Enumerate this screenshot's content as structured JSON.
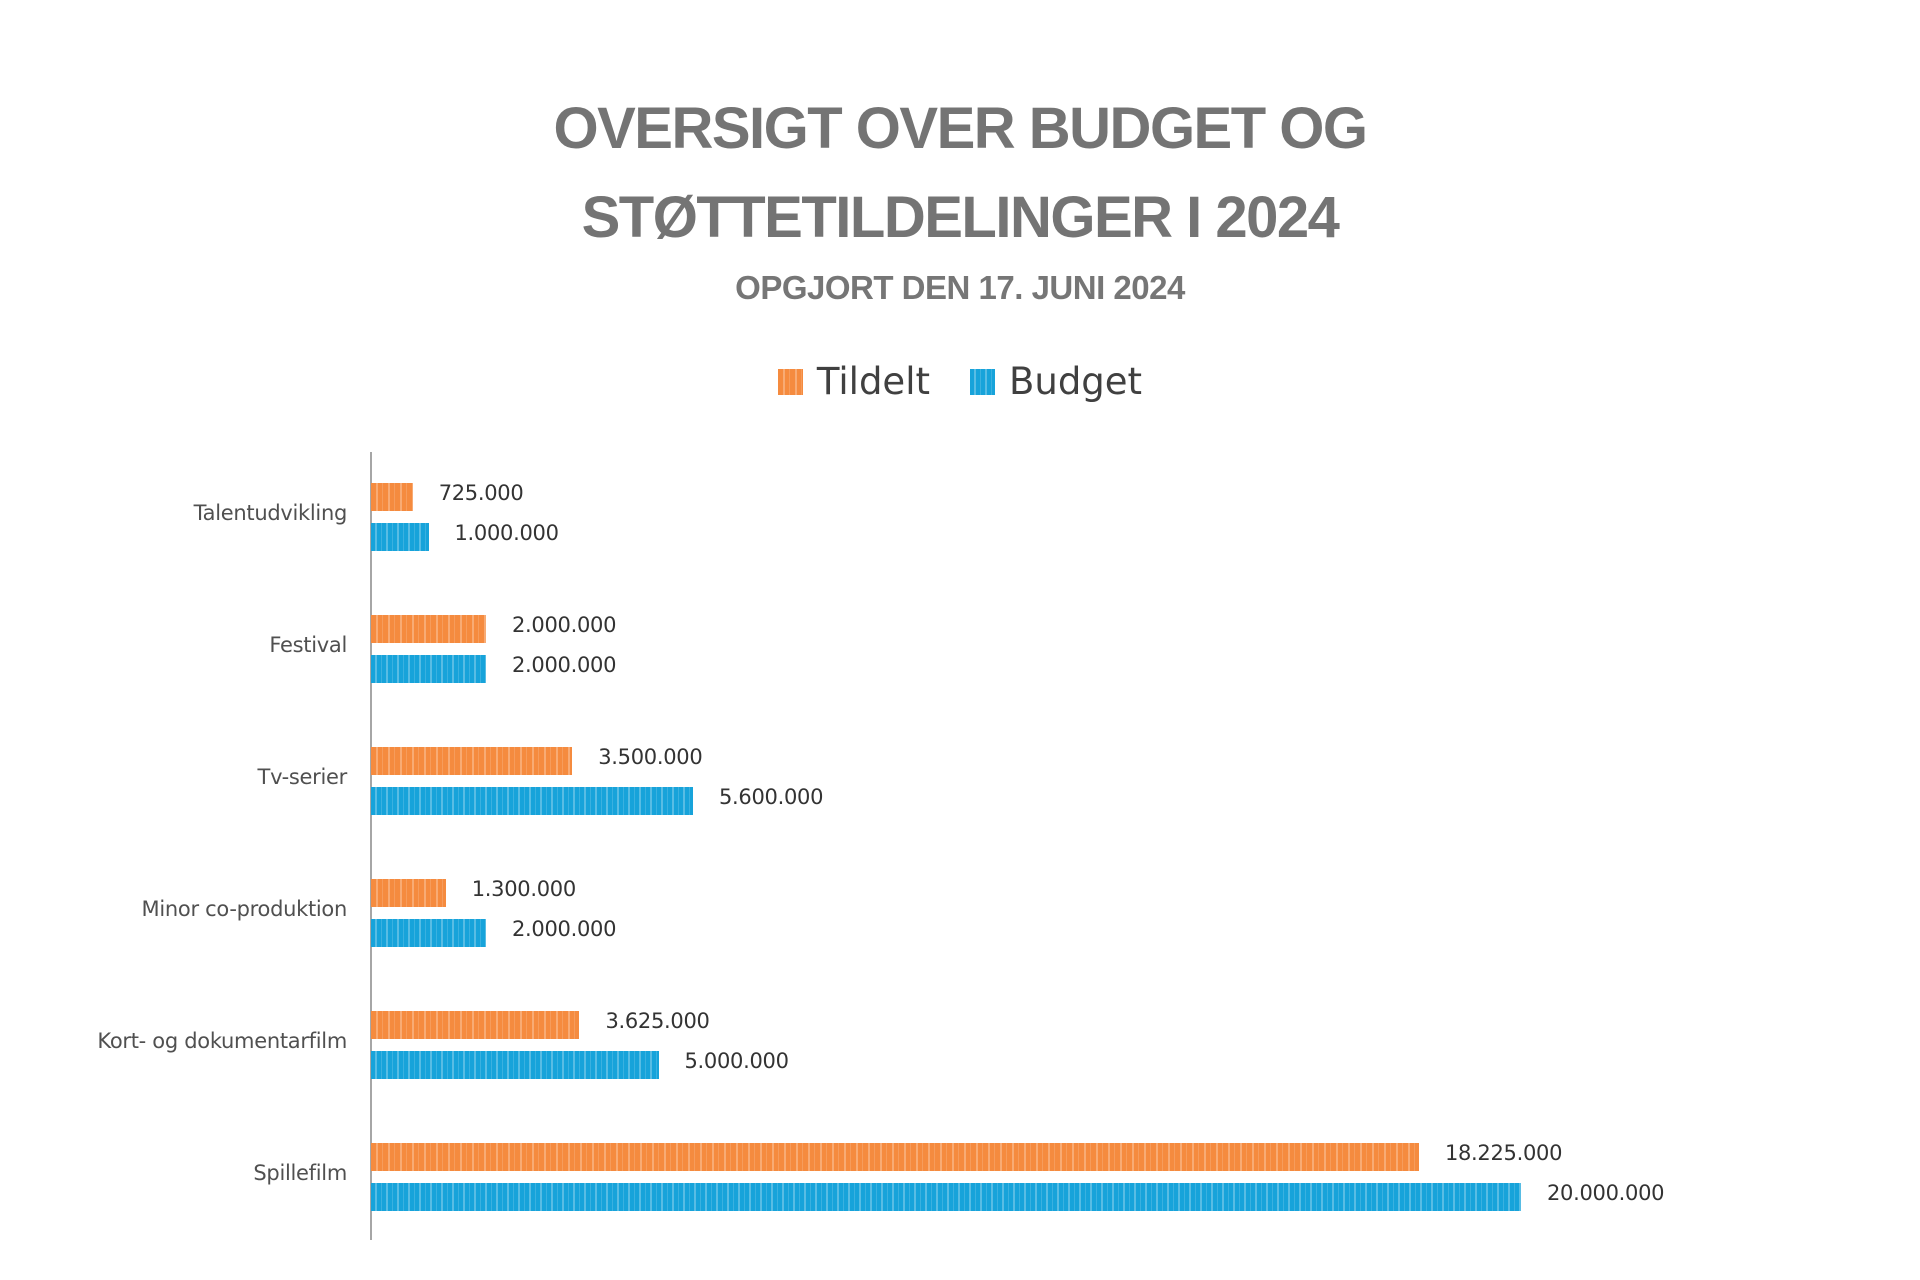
{
  "chart_data": {
    "type": "bar",
    "orientation": "horizontal",
    "title": "OVERSIGT OVER BUDGET OG STØTTETILDELINGER I 2024",
    "title_lines": [
      "OVERSIGT OVER BUDGET OG",
      "STØTTETILDELINGER I 2024"
    ],
    "subtitle": "OPGJORT DEN 17. JUNI 2024",
    "xlabel": "",
    "ylabel": "",
    "xlim": [
      0,
      20000000
    ],
    "grid": false,
    "legend_position": "top-center",
    "categories": [
      "Talentudvikling",
      "Festival",
      "Tv-serier",
      "Minor co-produktion",
      "Kort- og dokumentarfilm",
      "Spillefilm"
    ],
    "series": [
      {
        "name": "Tildelt",
        "color": "#F58B3F",
        "values": [
          725000,
          2000000,
          3500000,
          1300000,
          3625000,
          18225000
        ],
        "labels": [
          "725.000",
          "2.000.000",
          "3.500.000",
          "1.300.000",
          "3.625.000",
          "18.225.000"
        ]
      },
      {
        "name": "Budget",
        "color": "#17A3DA",
        "values": [
          1000000,
          2000000,
          5600000,
          2000000,
          5000000,
          20000000
        ],
        "labels": [
          "1.000.000",
          "2.000.000",
          "5.600.000",
          "2.000.000",
          "5.000.000",
          "20.000.000"
        ]
      }
    ]
  },
  "legend": {
    "items": [
      {
        "label": "Tildelt",
        "icon": "orange-square-swatch"
      },
      {
        "label": "Budget",
        "icon": "blue-square-swatch"
      }
    ]
  }
}
